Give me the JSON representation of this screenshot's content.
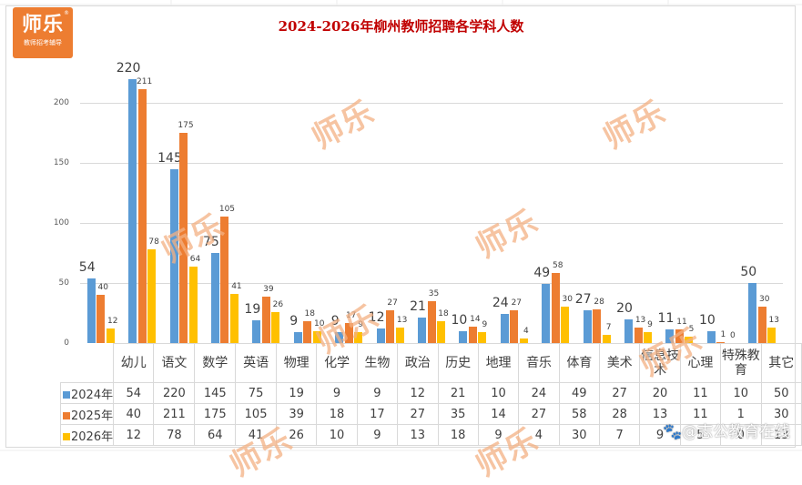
{
  "logo": {
    "main": "师乐",
    "sub": "教师招考辅导",
    "reg": "®"
  },
  "watermark": "师乐",
  "credit": "🐾@志公教育在线",
  "colors": {
    "s2024": "#5b9bd5",
    "s2025": "#ed7d31",
    "s2026": "#ffc000",
    "title": "#c00000"
  },
  "chart_data": {
    "type": "bar",
    "title": "2024-2026年柳州教师招聘各学科人数",
    "xlabel": "",
    "ylabel": "",
    "ylim": [
      0,
      240
    ],
    "yticks": [
      0,
      50,
      100,
      150,
      200
    ],
    "grid": true,
    "legend_position": "data-table",
    "categories": [
      "幼儿",
      "语文",
      "数学",
      "英语",
      "物理",
      "化学",
      "生物",
      "政治",
      "历史",
      "地理",
      "音乐",
      "体育",
      "美术",
      "信息技术",
      "心理",
      "特殊教育",
      "其它"
    ],
    "series": [
      {
        "name": "2024年",
        "values": [
          54,
          220,
          145,
          75,
          19,
          9,
          9,
          12,
          21,
          10,
          24,
          49,
          27,
          20,
          11,
          10,
          50
        ]
      },
      {
        "name": "2025年",
        "values": [
          40,
          211,
          175,
          105,
          39,
          18,
          17,
          27,
          35,
          14,
          27,
          58,
          28,
          13,
          11,
          1,
          30
        ]
      },
      {
        "name": "2026年",
        "values": [
          12,
          78,
          64,
          41,
          26,
          10,
          9,
          13,
          18,
          9,
          4,
          30,
          7,
          9,
          5,
          0,
          13
        ]
      }
    ]
  }
}
